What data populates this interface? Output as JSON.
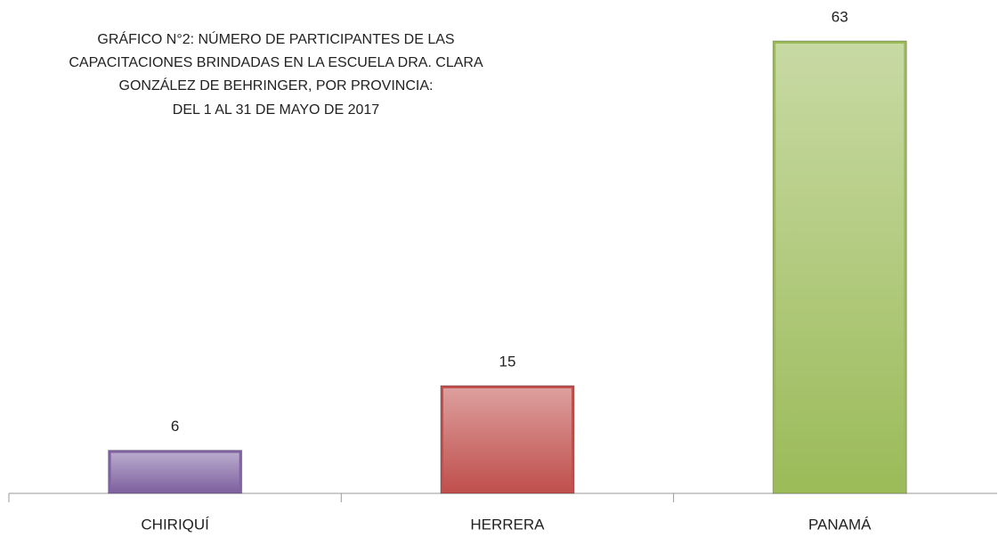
{
  "chart_data": {
    "type": "bar",
    "title": [
      "GRÁFICO N°2:   NÚMERO DE PARTICIPANTES DE LAS",
      "CAPACITACIONES BRINDADAS EN LA ESCUELA  DRA. CLARA",
      "GONZÁLEZ DE BEHRINGER, POR PROVINCIA:",
      "DEL 1 AL 31 DE MAYO DE 2017"
    ],
    "categories": [
      "CHIRIQUÍ",
      "HERRERA",
      "PANAMÁ"
    ],
    "values": [
      6,
      15,
      63
    ],
    "colors": [
      "#8064a2",
      "#c0504d",
      "#9bbb59"
    ],
    "ylim": [
      0,
      68.7
    ]
  }
}
